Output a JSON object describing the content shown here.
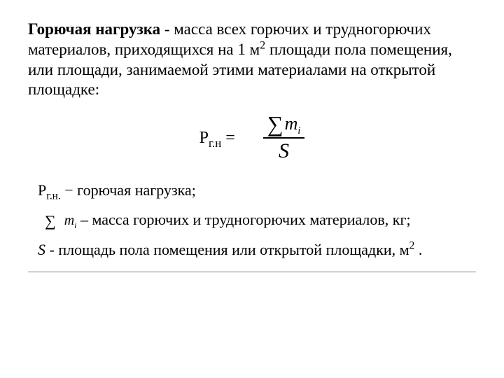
{
  "definition": {
    "term": "Горючая нагрузка",
    "text_before_sup": " - масса всех горючих и трудногорючих материалов, приходящихся на 1 м",
    "sup": "2",
    "text_after_sup": " площади пола помещения, или площади, занимаемой этими материалами на открытой площадке:"
  },
  "formula": {
    "lhs_letter": "Р",
    "lhs_sub": "г.н",
    "equals": " =",
    "numerator_symbol": "∑",
    "numerator_var": "m",
    "numerator_sub": "i",
    "denominator": "S"
  },
  "where": {
    "p_line": {
      "sym_letter": "Р",
      "sym_sub": "г.н.",
      "text": " − горючая нагрузка;"
    },
    "m_line": {
      "sum_symbol": "∑",
      "sum_var": "m",
      "sum_sub": "i",
      "text": " – масса горючих и трудногорючих материалов, кг;"
    },
    "s_line": {
      "sym": "S",
      "text_before_sup": " - площадь пола помещения или открытой площадки, м",
      "sup": "2",
      "text_after_sup": " ."
    }
  },
  "colors": {
    "text": "#000000",
    "background": "#ffffff",
    "hr": "#808080"
  }
}
